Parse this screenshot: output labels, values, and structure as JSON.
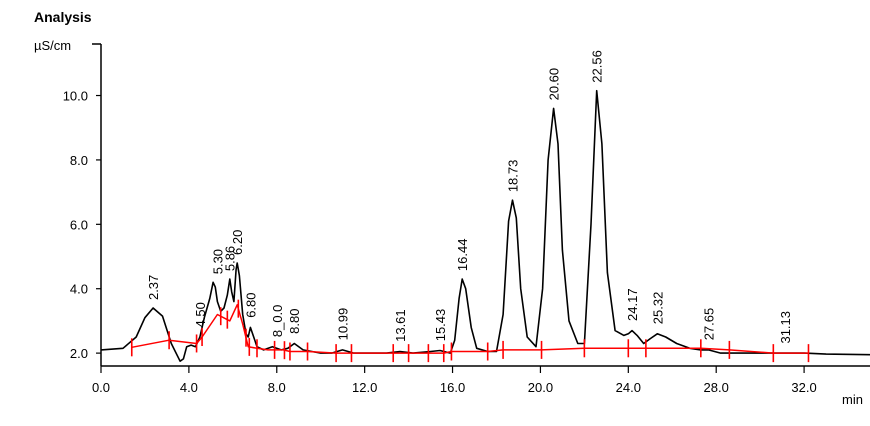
{
  "chart_data": {
    "type": "line",
    "title": "Analysis",
    "ylabel": "µS/cm",
    "xlabel": "min",
    "xlim": [
      0,
      35
    ],
    "ylim": [
      1.6,
      11.6
    ],
    "x_ticks": [
      0,
      4,
      8,
      12,
      16,
      20,
      24,
      28,
      32
    ],
    "x_tick_labels": [
      "0.0",
      "4.0",
      "8.0",
      "12.0",
      "16.0",
      "20.0",
      "24.0",
      "28.0",
      "32.0"
    ],
    "y_ticks": [
      2,
      4,
      6,
      8,
      10
    ],
    "y_tick_labels": [
      "2.0",
      "4.0",
      "6.0",
      "8.0",
      "10.0"
    ],
    "series": [
      {
        "color": "#000000",
        "x": [
          0,
          1.0,
          1.6,
          2.0,
          2.37,
          2.8,
          3.2,
          3.6,
          3.75,
          3.9,
          4.1,
          4.3,
          4.5,
          4.7,
          4.95,
          5.1,
          5.2,
          5.3,
          5.45,
          5.6,
          5.75,
          5.86,
          5.95,
          6.05,
          6.15,
          6.2,
          6.3,
          6.45,
          6.6,
          6.7,
          6.8,
          6.95,
          7.1,
          7.4,
          7.8,
          8.2,
          8.5,
          8.8,
          9.2,
          9.6,
          10.0,
          10.5,
          10.99,
          11.5,
          12.0,
          13.0,
          13.61,
          14.2,
          15.0,
          15.43,
          15.9,
          16.1,
          16.3,
          16.44,
          16.6,
          16.85,
          17.1,
          17.6,
          18.0,
          18.3,
          18.55,
          18.73,
          18.9,
          19.1,
          19.4,
          19.8,
          20.1,
          20.35,
          20.6,
          20.8,
          21.0,
          21.3,
          21.7,
          22.0,
          22.3,
          22.56,
          22.8,
          23.05,
          23.4,
          23.8,
          24.0,
          24.17,
          24.4,
          24.7,
          25.0,
          25.32,
          25.7,
          26.2,
          26.8,
          27.3,
          27.65,
          28.2,
          29.0,
          30.0,
          31.13,
          32.0,
          33.0,
          35.0
        ],
        "y": [
          2.1,
          2.15,
          2.5,
          3.1,
          3.4,
          3.15,
          2.3,
          1.75,
          1.82,
          2.2,
          2.25,
          2.2,
          2.5,
          3.1,
          3.7,
          4.2,
          4.05,
          3.6,
          3.3,
          3.4,
          3.8,
          4.3,
          3.9,
          3.6,
          4.6,
          4.8,
          4.4,
          3.2,
          2.6,
          2.5,
          2.8,
          2.5,
          2.2,
          2.1,
          2.2,
          2.1,
          2.15,
          2.3,
          2.1,
          2.05,
          2.0,
          2.0,
          2.1,
          2.0,
          2.0,
          2.0,
          2.05,
          2.0,
          2.05,
          2.08,
          2.0,
          2.4,
          3.7,
          4.3,
          4.0,
          2.8,
          2.15,
          2.05,
          2.05,
          3.2,
          6.1,
          6.75,
          6.2,
          4.0,
          2.5,
          2.2,
          4.0,
          8.0,
          9.6,
          8.5,
          5.2,
          3.0,
          2.3,
          2.3,
          6.0,
          10.15,
          8.5,
          4.5,
          2.7,
          2.55,
          2.6,
          2.7,
          2.55,
          2.3,
          2.45,
          2.6,
          2.5,
          2.3,
          2.15,
          2.1,
          2.1,
          2.0,
          2.0,
          2.0,
          2.0,
          2.0,
          1.97,
          1.95
        ]
      },
      {
        "color": "#ff0000",
        "x": [
          1.4,
          3.1,
          4.35,
          4.6,
          5.3,
          5.86,
          6.2,
          6.45,
          6.7,
          7.1,
          7.6,
          8.3,
          8.6,
          9.4,
          10.7,
          11.4,
          13.3,
          14.0,
          14.9,
          15.6,
          15.95,
          17.6,
          18.3,
          20.05,
          22.0,
          24.0,
          24.8,
          27.3,
          28.6,
          30.6,
          32.2
        ],
        "y": [
          2.18,
          2.4,
          2.3,
          2.5,
          3.2,
          3.0,
          3.5,
          2.9,
          2.2,
          2.15,
          2.1,
          2.1,
          2.05,
          2.05,
          2.0,
          2.0,
          2.0,
          2.0,
          2.0,
          2.0,
          2.05,
          2.05,
          2.1,
          2.1,
          2.15,
          2.15,
          2.15,
          2.15,
          2.1,
          2.0,
          2.0
        ]
      }
    ],
    "integration_marks_x": [
      1.4,
      3.1,
      4.35,
      4.6,
      5.45,
      5.75,
      6.25,
      6.6,
      6.75,
      7.1,
      7.9,
      8.35,
      8.6,
      9.4,
      10.7,
      11.4,
      13.3,
      14.0,
      14.9,
      15.6,
      15.95,
      17.6,
      18.3,
      20.05,
      22.0,
      24.0,
      24.8,
      27.3,
      28.6,
      30.6,
      32.2
    ],
    "peak_labels": [
      {
        "x": 2.37,
        "y": 3.4,
        "text": "2.37"
      },
      {
        "x": 4.5,
        "y": 2.55,
        "text": "4.50"
      },
      {
        "x": 5.3,
        "y": 4.2,
        "text": "5.30"
      },
      {
        "x": 5.86,
        "y": 4.3,
        "text": "5.86"
      },
      {
        "x": 6.2,
        "y": 4.8,
        "text": "6.20"
      },
      {
        "x": 6.8,
        "y": 2.85,
        "text": "6.80"
      },
      {
        "x": 8.0,
        "y": 2.25,
        "text": "8_0.0"
      },
      {
        "x": 8.8,
        "y": 2.35,
        "text": "8.80"
      },
      {
        "x": 10.99,
        "y": 2.15,
        "text": "10.99"
      },
      {
        "x": 13.61,
        "y": 2.1,
        "text": "13.61"
      },
      {
        "x": 15.43,
        "y": 2.12,
        "text": "15.43"
      },
      {
        "x": 16.44,
        "y": 4.3,
        "text": "16.44"
      },
      {
        "x": 18.73,
        "y": 6.75,
        "text": "18.73"
      },
      {
        "x": 20.6,
        "y": 9.6,
        "text": "20.60"
      },
      {
        "x": 22.56,
        "y": 10.15,
        "text": "22.56"
      },
      {
        "x": 24.17,
        "y": 2.75,
        "text": "24.17"
      },
      {
        "x": 25.32,
        "y": 2.65,
        "text": "25.32"
      },
      {
        "x": 27.65,
        "y": 2.15,
        "text": "27.65"
      },
      {
        "x": 31.13,
        "y": 2.05,
        "text": "31.13"
      }
    ]
  }
}
